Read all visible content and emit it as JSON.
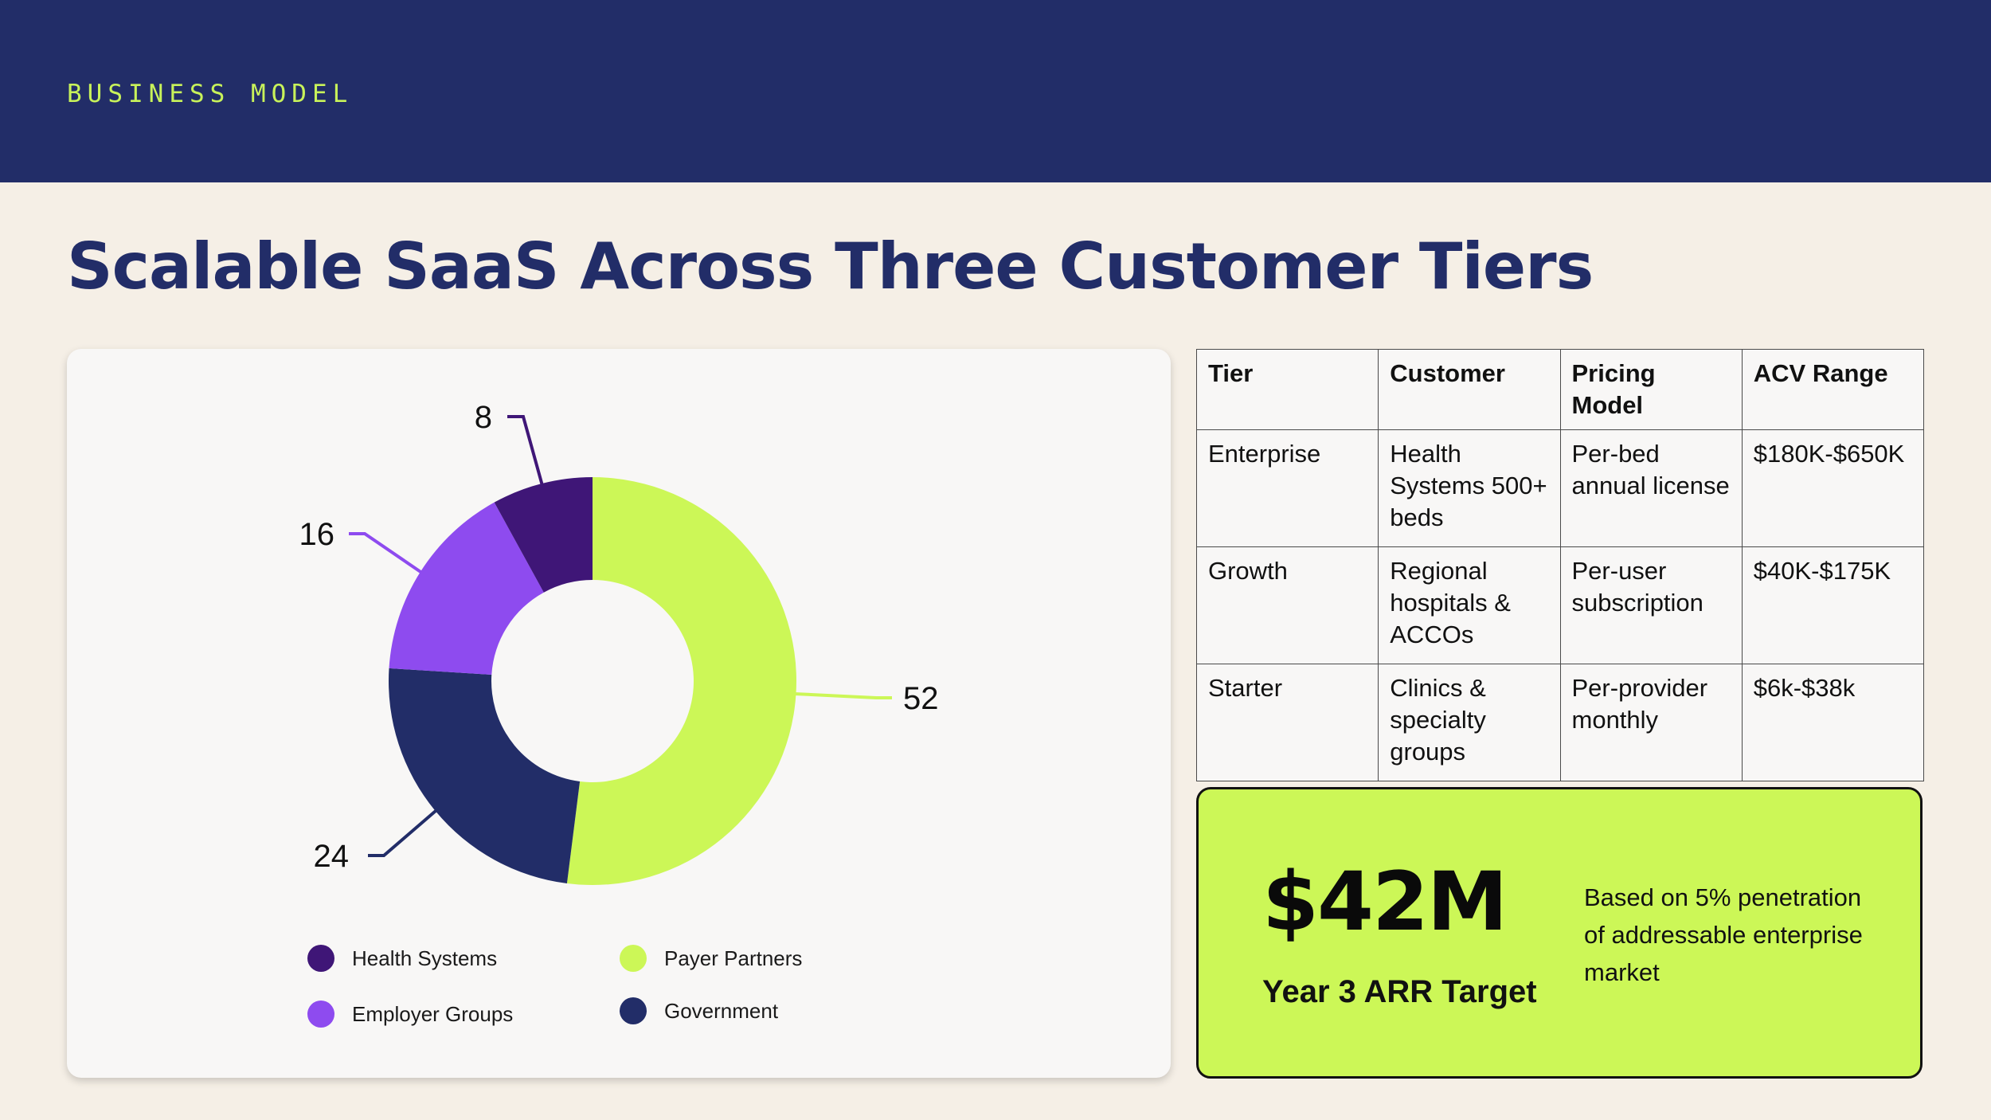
{
  "header": {
    "eyebrow": "BUSINESS MODEL"
  },
  "title": "Scalable SaaS Across Three Customer Tiers",
  "chart_data": {
    "type": "pie",
    "variant": "donut",
    "labels": [
      "Payer Partners",
      "Government",
      "Employer Groups",
      "Health Systems"
    ],
    "values": [
      52,
      24,
      16,
      8
    ],
    "colors": [
      "#ccf757",
      "#222d68",
      "#8e4bef",
      "#3f1677"
    ],
    "legend": [
      {
        "label": "Health Systems",
        "color": "#3f1677"
      },
      {
        "label": "Payer Partners",
        "color": "#ccf757"
      },
      {
        "label": "Employer Groups",
        "color": "#8e4bef"
      },
      {
        "label": "Government",
        "color": "#222d68"
      }
    ],
    "legend_position": "bottom"
  },
  "table": {
    "headers": [
      "Tier",
      "Customer",
      "Pricing Model",
      "ACV Range"
    ],
    "rows": [
      [
        "Enterprise",
        "Health Systems 500+ beds",
        "Per-bed annual license",
        "$180K-$650K"
      ],
      [
        "Growth",
        "Regional hospitals & ACCOs",
        "Per-user subscription",
        "$40K-$175K"
      ],
      [
        "Starter",
        "Clinics & specialty groups",
        "Per-provider monthly",
        "$6k-$38k"
      ]
    ]
  },
  "arr": {
    "value": "$42M",
    "label": "Year 3 ARR Target",
    "note": "Based on 5% penetration of addressable enterprise market"
  }
}
